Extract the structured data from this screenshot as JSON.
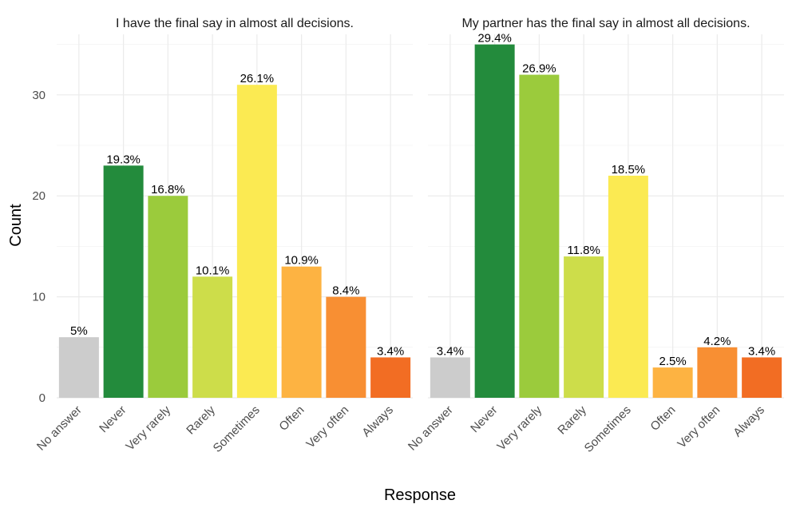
{
  "chart_data": {
    "type": "bar",
    "xlabel": "Response",
    "ylabel": "Count",
    "ylim": [
      0,
      36
    ],
    "yticks": [
      0,
      10,
      20,
      30
    ],
    "grid": true,
    "categories": [
      "No answer",
      "Never",
      "Very rarely",
      "Rarely",
      "Sometimes",
      "Often",
      "Very often",
      "Always"
    ],
    "colors": [
      "#cccccc",
      "#238b3c",
      "#9bcb3c",
      "#cddd4a",
      "#fbea52",
      "#fdb342",
      "#f88f33",
      "#f26d23"
    ],
    "panels": [
      {
        "title": "I have the final say in almost all decisions.",
        "values": [
          6,
          23,
          20,
          12,
          31,
          13,
          10,
          4
        ],
        "labels": [
          "5%",
          "19.3%",
          "16.8%",
          "10.1%",
          "26.1%",
          "10.9%",
          "8.4%",
          "3.4%"
        ]
      },
      {
        "title": "My partner has the final say in almost all decisions.",
        "values": [
          4,
          35,
          32,
          14,
          22,
          3,
          5,
          4
        ],
        "labels": [
          "3.4%",
          "29.4%",
          "26.9%",
          "11.8%",
          "18.5%",
          "2.5%",
          "4.2%",
          "3.4%"
        ]
      }
    ]
  }
}
